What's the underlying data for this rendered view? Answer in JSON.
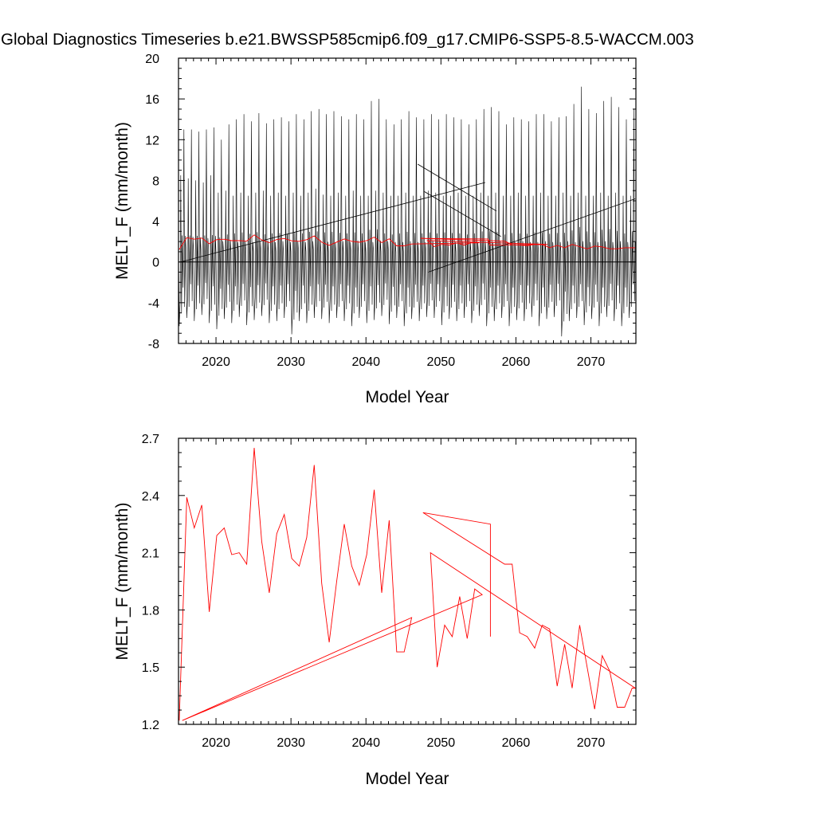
{
  "figure": {
    "title": "Global Diagnostics Timeseries b.e21.BWSSP585cmip6.f09_g17.CMIP6-SSP5-8.5-WACCM.003"
  },
  "colors": {
    "monthly": "#000000",
    "annual": "#ff0000",
    "axis": "#000000"
  },
  "chart_data": [
    {
      "type": "line",
      "ylabel": "MELT_F (mm/month)",
      "xlabel": "Model Year",
      "xlim": [
        2015,
        2076
      ],
      "ylim": [
        -8,
        20
      ],
      "x_ticks": [
        2020,
        2030,
        2040,
        2050,
        2060,
        2070
      ],
      "x_tick_labels": [
        "2020",
        "2030",
        "2040",
        "2050",
        "2060",
        "2070"
      ],
      "y_ticks": [
        -8,
        -4,
        0,
        4,
        8,
        12,
        16,
        20
      ],
      "y_tick_labels": [
        "-8",
        "-4",
        "0",
        "4",
        "8",
        "12",
        "16",
        "20"
      ],
      "zero_line": true,
      "series": [
        {
          "color": "#000000",
          "encoding": "monthly seasonal cycle: one peak and one trough per year",
          "x_years": [
            2015,
            2016,
            2017,
            2018,
            2019,
            2020,
            2021,
            2022,
            2023,
            2024,
            2025,
            2026,
            2027,
            2028,
            2029,
            2030,
            2031,
            2032,
            2033,
            2034,
            2035,
            2036,
            2037,
            2038,
            2039,
            2040,
            2041,
            2042,
            2043,
            2044,
            2045,
            2046,
            2047,
            2048,
            2049,
            2050,
            2051,
            2052,
            2053,
            2054,
            2055,
            2056,
            2057,
            2058,
            2059,
            2060,
            2061,
            2062,
            2063,
            2064,
            2065,
            2066,
            2067,
            2068,
            2069,
            2070,
            2071,
            2072,
            2073,
            2074,
            2075
          ],
          "annual_peak": [
            13.0,
            13.0,
            12.8,
            13.0,
            13.2,
            12.0,
            13.5,
            14.0,
            14.5,
            13.8,
            14.6,
            13.6,
            14.0,
            14.2,
            13.8,
            14.5,
            14.0,
            14.8,
            15.0,
            14.5,
            14.8,
            14.3,
            14.0,
            14.5,
            14.0,
            15.8,
            16.0,
            14.0,
            13.5,
            14.0,
            14.8,
            14.2,
            14.0,
            14.5,
            14.0,
            14.5,
            14.2,
            14.0,
            13.5,
            14.0,
            15.0,
            15.2,
            14.8,
            13.5,
            14.2,
            14.0,
            13.8,
            14.5,
            14.5,
            13.8,
            14.2,
            14.3,
            15.5,
            17.2,
            15.0,
            14.6,
            15.8,
            16.2,
            15.2,
            14.0,
            15.0
          ],
          "annual_secondary": [
            8.5,
            8.2,
            8.0,
            7.8,
            8.5,
            6.8,
            7.0,
            6.5,
            6.8,
            6.5,
            6.8,
            7.0,
            6.5,
            6.8,
            6.5,
            6.8,
            6.5,
            6.8,
            7.2,
            6.6,
            6.5,
            6.8,
            6.5,
            7.0,
            6.5,
            6.5,
            7.0,
            6.8,
            6.5,
            6.5,
            6.8,
            6.5,
            6.5,
            7.0,
            6.8,
            6.5,
            6.5,
            6.8,
            6.5,
            6.5,
            6.8,
            6.5,
            6.8,
            6.5,
            6.5,
            6.8,
            6.5,
            6.5,
            6.8,
            6.5,
            6.5,
            6.8,
            6.5,
            6.8,
            6.5,
            6.5,
            6.8,
            6.5,
            6.8,
            6.5,
            6.5
          ],
          "annual_trough": [
            -6.3,
            -5.5,
            -5.8,
            -5.2,
            -6.0,
            -6.6,
            -5.6,
            -6.0,
            -5.4,
            -6.2,
            -5.7,
            -5.3,
            -6.0,
            -5.8,
            -5.5,
            -7.1,
            -5.8,
            -6.0,
            -5.5,
            -5.6,
            -6.0,
            -5.5,
            -5.8,
            -6.3,
            -5.5,
            -6.0,
            -5.7,
            -5.3,
            -6.1,
            -5.5,
            -6.3,
            -5.6,
            -5.8,
            -5.4,
            -5.5,
            -6.2,
            -5.6,
            -5.8,
            -5.5,
            -6.0,
            -5.3,
            -6.3,
            -5.8,
            -5.5,
            -6.3,
            -5.7,
            -5.8,
            -5.4,
            -6.3,
            -5.6,
            -5.4,
            -7.3,
            -5.8,
            -5.5,
            -6.2,
            -5.6,
            -6.3,
            -5.4,
            -5.8,
            -6.3,
            -5.5
          ]
        },
        {
          "color": "#000000",
          "encoding": "long straight segments drawn where the time axis wraps",
          "segments": [
            [
              [
                2015.3,
                0.0
              ],
              [
                2055.9,
                7.8
              ]
            ],
            [
              [
                2046.9,
                9.6
              ],
              [
                2057.4,
                5.0
              ]
            ],
            [
              [
                2047.8,
                6.9
              ],
              [
                2058.0,
                2.5
              ]
            ],
            [
              [
                2048.3,
                -1.0
              ],
              [
                2075.9,
                6.2
              ]
            ]
          ]
        },
        {
          "color": "#ff0000",
          "encoding": "annual mean, same values as the lower panel",
          "x": [
            2015.1,
            2016.1,
            2017.1,
            2018.1,
            2019.1,
            2020.1,
            2021.1,
            2022.1,
            2023.1,
            2024.1,
            2025.1,
            2026.1,
            2027.1,
            2028.1,
            2029.1,
            2030.1,
            2031.1,
            2032.1,
            2033.1,
            2034.1,
            2035.1,
            2036.1,
            2037.1,
            2038.1,
            2039.1,
            2040.1,
            2041.1,
            2042.1,
            2043.1,
            2044.1,
            2045.1,
            2046.1,
            2055.1,
            2054.1,
            2053.1,
            2052.1,
            2051.1,
            2050.1,
            2049.1,
            2048.2,
            2064.2,
            2056.5,
            2056.3,
            2047.3,
            2058.5,
            2059.5,
            2060.5,
            2061.5,
            2062.5,
            2063.5,
            2064.5,
            2065.5,
            2066.5,
            2067.5,
            2068.5,
            2069.5,
            2070.5,
            2071.5,
            2072.5,
            2073.5,
            2074.5,
            2075.5,
            2075.9
          ],
          "y": [
            1.22,
            2.39,
            2.23,
            2.35,
            1.79,
            2.19,
            2.23,
            2.09,
            2.1,
            2.04,
            2.65,
            2.16,
            1.89,
            2.2,
            2.3,
            2.07,
            2.03,
            2.18,
            2.56,
            1.94,
            1.63,
            1.95,
            2.25,
            2.03,
            1.93,
            2.09,
            2.43,
            1.89,
            2.27,
            1.58,
            1.58,
            1.76,
            1.88,
            1.91,
            1.65,
            1.87,
            1.66,
            1.72,
            1.5,
            2.1,
            1.72,
            1.66,
            2.25,
            2.31,
            2.04,
            1.68,
            1.66,
            1.6,
            1.72,
            1.7,
            1.4,
            1.62,
            1.39,
            1.72,
            1.5,
            1.28,
            1.56,
            1.48,
            1.29,
            1.29,
            1.39,
            1.39,
            1.39
          ]
        }
      ]
    },
    {
      "type": "line",
      "ylabel": "MELT_F (mm/month)",
      "xlabel": "Model Year",
      "xlim": [
        2015,
        2076
      ],
      "ylim": [
        1.2,
        2.7
      ],
      "x_ticks": [
        2020,
        2030,
        2040,
        2050,
        2060,
        2070
      ],
      "x_tick_labels": [
        "2020",
        "2030",
        "2040",
        "2050",
        "2060",
        "2070"
      ],
      "y_ticks": [
        1.2,
        1.5,
        1.8,
        2.1,
        2.4,
        2.7
      ],
      "y_tick_labels": [
        "1.2",
        "1.5",
        "1.8",
        "2.1",
        "2.4",
        "2.7"
      ],
      "series": [
        {
          "color": "#ff0000",
          "x": [
            2015.1,
            2016.1,
            2017.1,
            2018.1,
            2019.1,
            2020.1,
            2021.1,
            2022.1,
            2023.1,
            2024.1,
            2025.1,
            2026.1,
            2027.1,
            2028.1,
            2029.1,
            2030.1,
            2031.1,
            2032.1,
            2033.1,
            2034.1,
            2035.1,
            2036.1,
            2037.1,
            2038.1,
            2039.1,
            2040.1,
            2041.1,
            2042.1,
            2043.1,
            2044.1,
            2045.1,
            2046.1,
            2015.5,
            2055.5,
            2054.5,
            2053.5,
            2052.5,
            2051.5,
            2050.5,
            2049.5,
            2048.6,
            2075.9,
            2075.5,
            2074.5,
            2073.5,
            2072.5,
            2071.5,
            2070.5,
            2069.5,
            2068.5,
            2067.5,
            2066.5,
            2065.5,
            2064.5,
            2063.5,
            2062.5,
            2061.5,
            2060.5,
            2059.5,
            2058.5,
            2047.6,
            2056.6,
            2056.6
          ],
          "y": [
            1.22,
            2.39,
            2.23,
            2.35,
            1.79,
            2.19,
            2.23,
            2.09,
            2.1,
            2.04,
            2.65,
            2.16,
            1.89,
            2.2,
            2.3,
            2.07,
            2.03,
            2.18,
            2.56,
            1.94,
            1.63,
            1.95,
            2.25,
            2.03,
            1.93,
            2.09,
            2.43,
            1.89,
            2.27,
            1.58,
            1.58,
            1.76,
            1.22,
            1.88,
            1.91,
            1.65,
            1.87,
            1.66,
            1.72,
            1.5,
            2.1,
            1.39,
            1.39,
            1.29,
            1.29,
            1.48,
            1.56,
            1.28,
            1.5,
            1.72,
            1.39,
            1.62,
            1.4,
            1.7,
            1.72,
            1.6,
            1.66,
            1.68,
            2.04,
            2.04,
            2.31,
            2.25,
            1.66
          ]
        }
      ]
    }
  ]
}
